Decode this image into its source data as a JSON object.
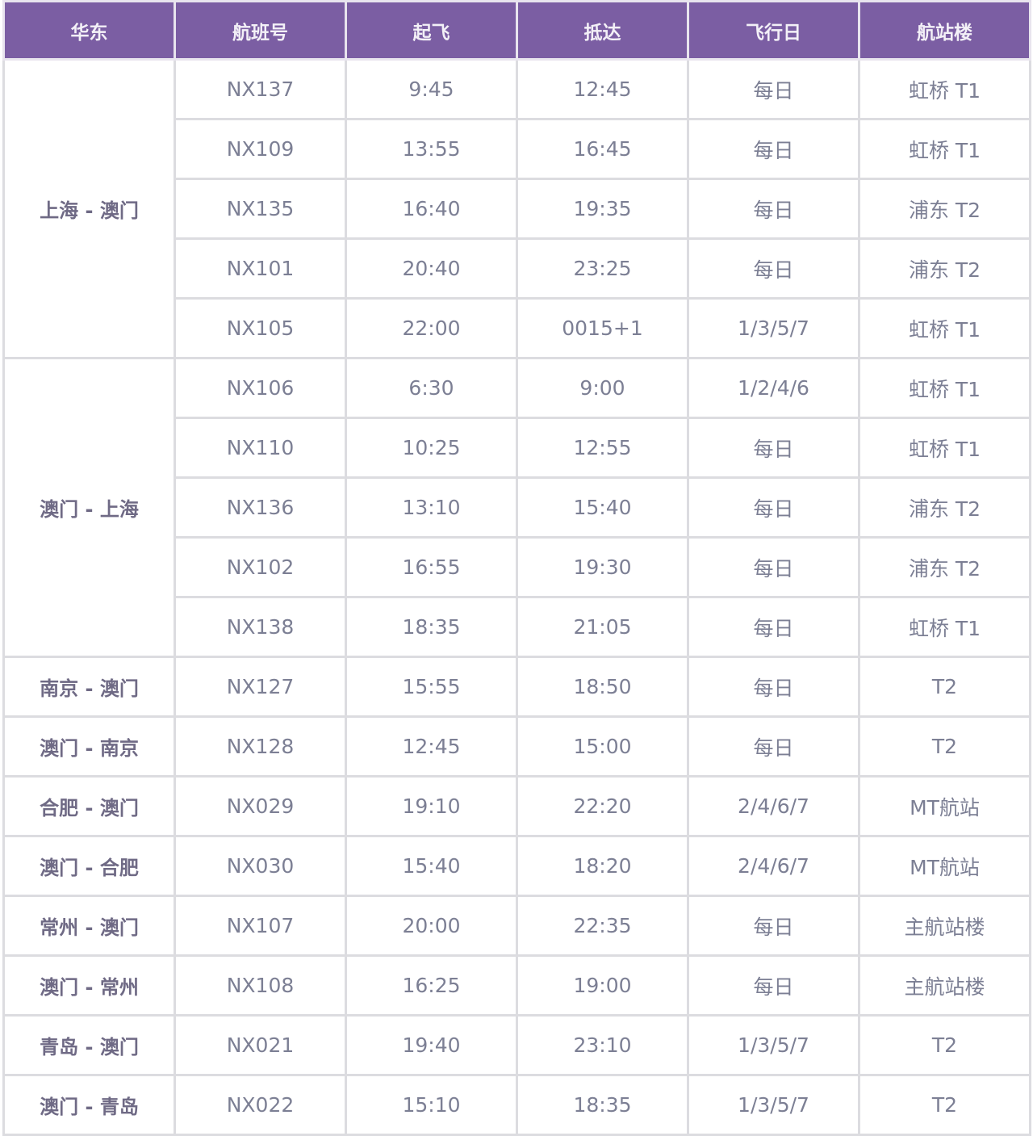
{
  "header_color": "#7b5ea3",
  "columns": [
    "华东",
    "航班号",
    "起飞",
    "抵达",
    "飞行日",
    "航站楼"
  ],
  "groups": [
    {
      "route": "上海 - 澳门",
      "rows": [
        [
          "NX137",
          "9:45",
          "12:45",
          "每日",
          "虹桥 T1"
        ],
        [
          "NX109",
          "13:55",
          "16:45",
          "每日",
          "虹桥 T1"
        ],
        [
          "NX135",
          "16:40",
          "19:35",
          "每日",
          "浦东 T2"
        ],
        [
          "NX101",
          "20:40",
          "23:25",
          "每日",
          "浦东 T2"
        ],
        [
          "NX105",
          "22:00",
          "0015+1",
          "1/3/5/7",
          "虹桥 T1"
        ]
      ]
    },
    {
      "route": "澳门 - 上海",
      "rows": [
        [
          "NX106",
          "6:30",
          "9:00",
          "1/2/4/6",
          "虹桥 T1"
        ],
        [
          "NX110",
          "10:25",
          "12:55",
          "每日",
          "虹桥 T1"
        ],
        [
          "NX136",
          "13:10",
          "15:40",
          "每日",
          "浦东 T2"
        ],
        [
          "NX102",
          "16:55",
          "19:30",
          "每日",
          "浦东 T2"
        ],
        [
          "NX138",
          "18:35",
          "21:05",
          "每日",
          "虹桥 T1"
        ]
      ]
    },
    {
      "route": "南京 - 澳门",
      "rows": [
        [
          "NX127",
          "15:55",
          "18:50",
          "每日",
          "T2"
        ]
      ]
    },
    {
      "route": "澳门 - 南京",
      "rows": [
        [
          "NX128",
          "12:45",
          "15:00",
          "每日",
          "T2"
        ]
      ]
    },
    {
      "route": "合肥 - 澳门",
      "rows": [
        [
          "NX029",
          "19:10",
          "22:20",
          "2/4/6/7",
          "MT航站"
        ]
      ]
    },
    {
      "route": "澳门 - 合肥",
      "rows": [
        [
          "NX030",
          "15:40",
          "18:20",
          "2/4/6/7",
          "MT航站"
        ]
      ]
    },
    {
      "route": "常州 - 澳门",
      "rows": [
        [
          "NX107",
          "20:00",
          "22:35",
          "每日",
          "主航站楼"
        ]
      ]
    },
    {
      "route": "澳门 - 常州",
      "rows": [
        [
          "NX108",
          "16:25",
          "19:00",
          "每日",
          "主航站楼"
        ]
      ]
    },
    {
      "route": "青岛 - 澳门",
      "rows": [
        [
          "NX021",
          "19:40",
          "23:10",
          "1/3/5/7",
          "T2"
        ]
      ]
    },
    {
      "route": "澳门 - 青岛",
      "rows": [
        [
          "NX022",
          "15:10",
          "18:35",
          "1/3/5/7",
          "T2"
        ]
      ]
    }
  ]
}
